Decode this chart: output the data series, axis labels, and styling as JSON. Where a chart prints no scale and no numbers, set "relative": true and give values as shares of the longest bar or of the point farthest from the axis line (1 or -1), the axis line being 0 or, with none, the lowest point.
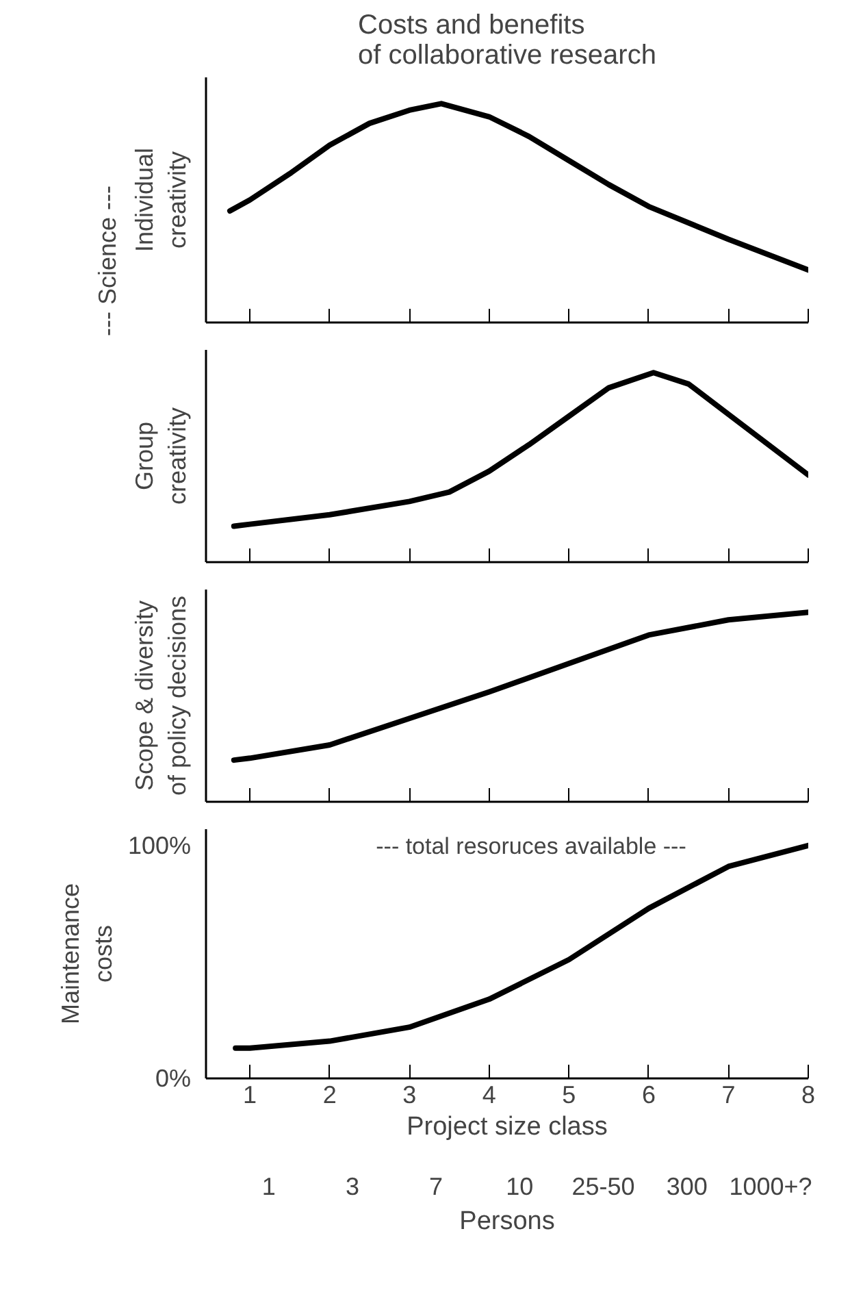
{
  "chart_data": [
    {
      "type": "line",
      "title": "Costs and benefits\nof collaborative research",
      "ylabel": "Individual\ncreativity",
      "annotations": [
        "--- Science ---"
      ],
      "relative": true,
      "x": [
        0.75,
        1,
        1.5,
        2,
        2.5,
        3,
        3.4,
        4,
        4.5,
        5,
        5.5,
        6,
        7,
        8
      ],
      "series": [
        {
          "color": "#000000",
          "values": [
            0.51,
            0.56,
            0.68,
            0.81,
            0.91,
            0.97,
            1,
            0.94,
            0.85,
            0.74,
            0.63,
            0.53,
            0.38,
            0.24
          ]
        }
      ],
      "xlim": [
        0.45,
        8
      ],
      "xticks": [
        1,
        2,
        3,
        4,
        5,
        6,
        7,
        8
      ],
      "tick_labels": false,
      "grid": false
    },
    {
      "type": "line",
      "ylabel": "Group\ncreativity",
      "relative": true,
      "x": [
        0.8,
        1,
        2,
        3,
        3.5,
        4,
        4.5,
        5,
        5.5,
        6.06,
        6.5,
        7,
        7.5,
        8
      ],
      "series": [
        {
          "color": "#000000",
          "values": [
            0.19,
            0.2,
            0.25,
            0.32,
            0.37,
            0.48,
            0.62,
            0.77,
            0.92,
            1,
            0.94,
            0.78,
            0.62,
            0.46
          ]
        }
      ],
      "xlim": [
        0.45,
        8
      ],
      "xticks": [
        1,
        2,
        3,
        4,
        5,
        6,
        7,
        8
      ],
      "tick_labels": false,
      "grid": false
    },
    {
      "type": "line",
      "ylabel": "Scope & diversity\nof policy decisions",
      "relative": true,
      "x": [
        0.8,
        1,
        2,
        3,
        4,
        5,
        6,
        7,
        8
      ],
      "series": [
        {
          "color": "#000000",
          "values": [
            0.22,
            0.23,
            0.3,
            0.44,
            0.58,
            0.73,
            0.88,
            0.96,
            1
          ]
        }
      ],
      "xlim": [
        0.45,
        8
      ],
      "xticks": [
        1,
        2,
        3,
        4,
        5,
        6,
        7,
        8
      ],
      "tick_labels": false,
      "grid": false
    },
    {
      "type": "line",
      "ylabel": "Maintenance\ncosts",
      "xlabel": "Project size class",
      "annotations": [
        "--- total resoruces available ---",
        "1",
        "3",
        "7",
        "10",
        "25-50",
        "300",
        "1000+?",
        "Persons"
      ],
      "x": [
        0.82,
        1,
        2,
        3,
        4,
        5,
        6,
        7,
        8
      ],
      "series": [
        {
          "color": "#000000",
          "values": [
            13,
            13,
            16,
            22,
            34,
            51,
            73,
            91,
            100
          ]
        }
      ],
      "xlim": [
        0.45,
        8
      ],
      "xticks": [
        1,
        2,
        3,
        4,
        5,
        6,
        7,
        8
      ],
      "ylim": [
        0,
        107
      ],
      "yticks": [
        {
          "value": 0,
          "label": "0%"
        },
        {
          "value": 100,
          "label": "100%"
        }
      ],
      "grid": false
    }
  ]
}
